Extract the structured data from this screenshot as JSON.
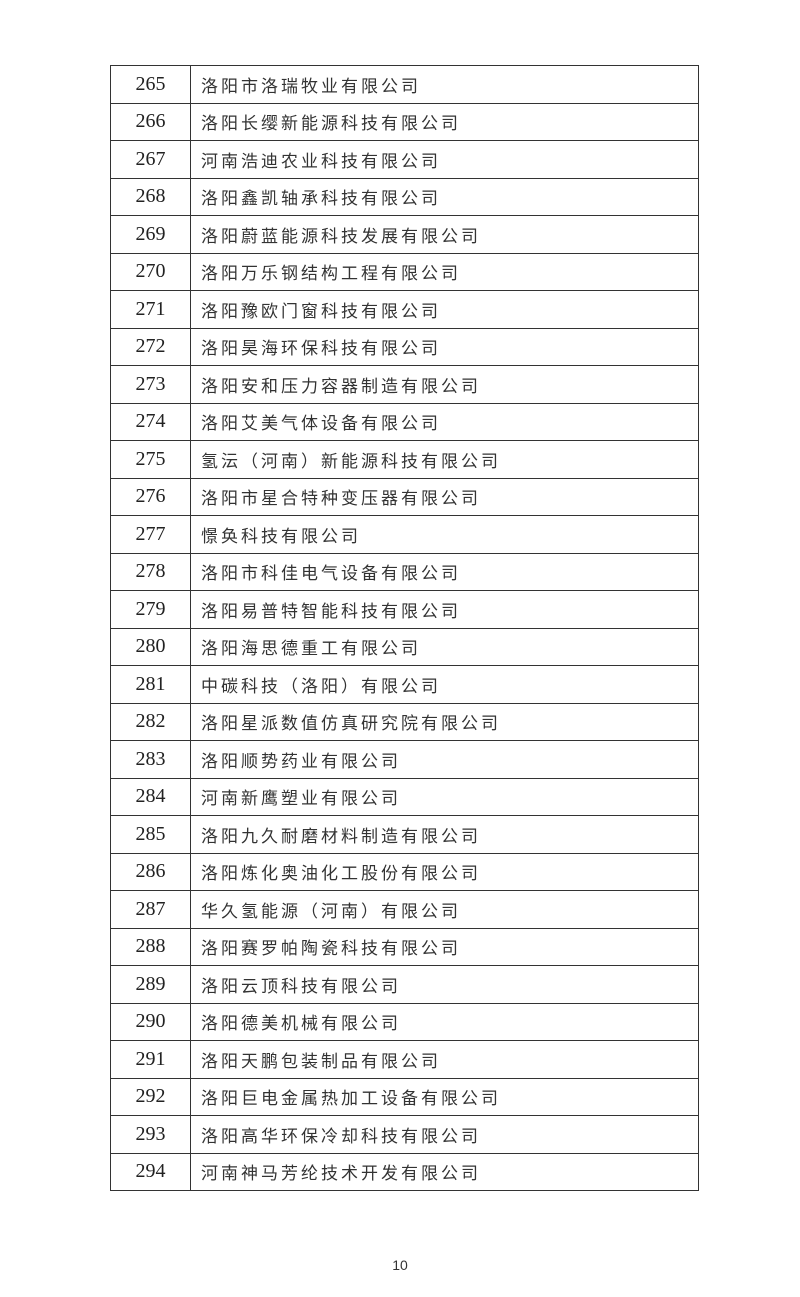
{
  "table": {
    "rows": [
      {
        "no": "265",
        "name": "洛阳市洛瑞牧业有限公司"
      },
      {
        "no": "266",
        "name": "洛阳长缨新能源科技有限公司"
      },
      {
        "no": "267",
        "name": "河南浩迪农业科技有限公司"
      },
      {
        "no": "268",
        "name": "洛阳鑫凯轴承科技有限公司"
      },
      {
        "no": "269",
        "name": "洛阳蔚蓝能源科技发展有限公司"
      },
      {
        "no": "270",
        "name": "洛阳万乐钢结构工程有限公司"
      },
      {
        "no": "271",
        "name": "洛阳豫欧门窗科技有限公司"
      },
      {
        "no": "272",
        "name": "洛阳昊海环保科技有限公司"
      },
      {
        "no": "273",
        "name": "洛阳安和压力容器制造有限公司"
      },
      {
        "no": "274",
        "name": "洛阳艾美气体设备有限公司"
      },
      {
        "no": "275",
        "name": "氢沄（河南）新能源科技有限公司"
      },
      {
        "no": "276",
        "name": "洛阳市星合特种变压器有限公司"
      },
      {
        "no": "277",
        "name": "憬奂科技有限公司"
      },
      {
        "no": "278",
        "name": "洛阳市科佳电气设备有限公司"
      },
      {
        "no": "279",
        "name": "洛阳易普特智能科技有限公司"
      },
      {
        "no": "280",
        "name": "洛阳海思德重工有限公司"
      },
      {
        "no": "281",
        "name": "中碳科技（洛阳）有限公司"
      },
      {
        "no": "282",
        "name": "洛阳星派数值仿真研究院有限公司"
      },
      {
        "no": "283",
        "name": "洛阳顺势药业有限公司"
      },
      {
        "no": "284",
        "name": "河南新鹰塑业有限公司"
      },
      {
        "no": "285",
        "name": "洛阳九久耐磨材料制造有限公司"
      },
      {
        "no": "286",
        "name": "洛阳炼化奥油化工股份有限公司"
      },
      {
        "no": "287",
        "name": "华久氢能源（河南）有限公司"
      },
      {
        "no": "288",
        "name": "洛阳赛罗帕陶瓷科技有限公司"
      },
      {
        "no": "289",
        "name": "洛阳云顶科技有限公司"
      },
      {
        "no": "290",
        "name": "洛阳德美机械有限公司"
      },
      {
        "no": "291",
        "name": "洛阳天鹏包装制品有限公司"
      },
      {
        "no": "292",
        "name": "洛阳巨电金属热加工设备有限公司"
      },
      {
        "no": "293",
        "name": "洛阳高华环保冷却科技有限公司"
      },
      {
        "no": "294",
        "name": "河南神马芳纶技术开发有限公司"
      }
    ]
  },
  "footer": {
    "page_number": "10"
  }
}
